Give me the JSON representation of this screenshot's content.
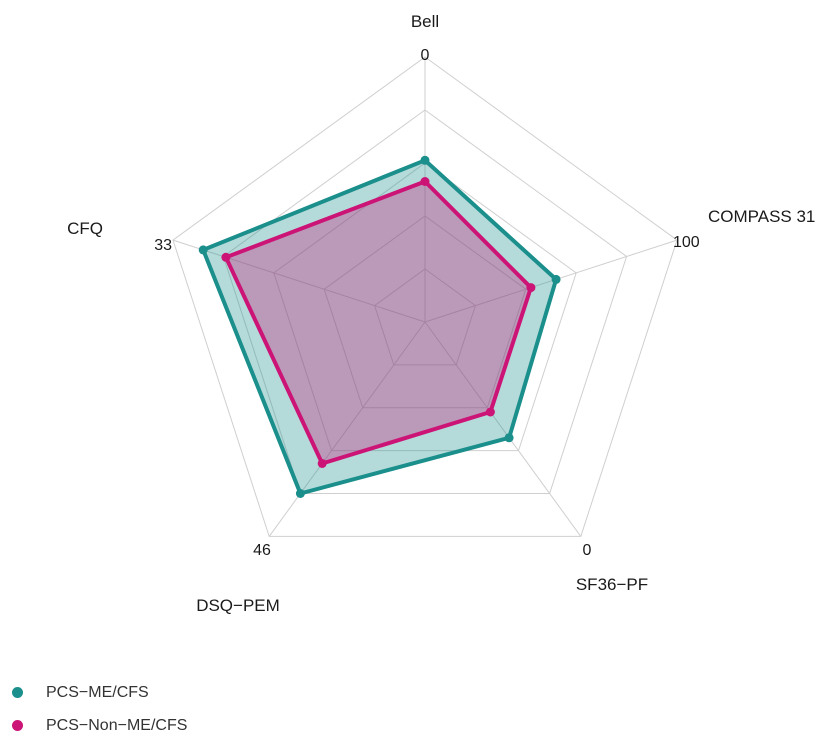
{
  "chart_data": {
    "type": "radar",
    "axes": [
      {
        "name": "Bell",
        "range_label": "0"
      },
      {
        "name": "COMPASS 31",
        "range_label": "100"
      },
      {
        "name": "SF36−PF",
        "range_label": "0"
      },
      {
        "name": "DSQ−PEM",
        "range_label": "46"
      },
      {
        "name": "CFQ",
        "range_label": "33"
      }
    ],
    "grid_levels": 5,
    "series": [
      {
        "name": "PCS−ME/CFS",
        "color": "#1a8f8c",
        "fill": "rgba(26,143,140,0.33)",
        "values": [
          0.61,
          0.52,
          0.54,
          0.8,
          0.88
        ]
      },
      {
        "name": "PCS−Non−ME/CFS",
        "color": "#cc1477",
        "fill": "rgba(204,20,119,0.33)",
        "values": [
          0.53,
          0.42,
          0.42,
          0.66,
          0.79
        ]
      }
    ]
  }
}
